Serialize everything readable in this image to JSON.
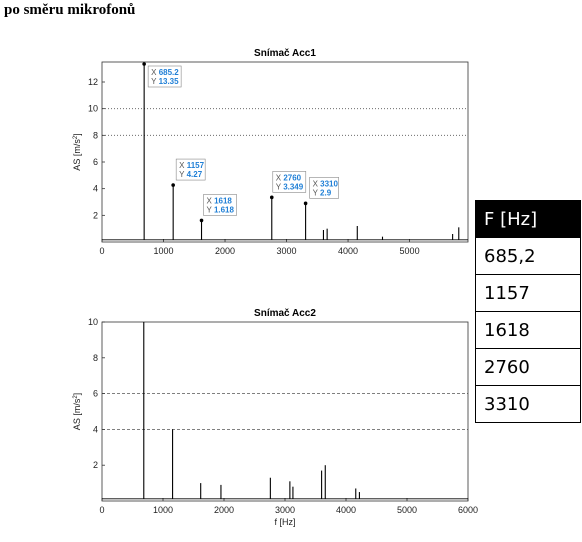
{
  "heading": "po směru mikrofonů",
  "freq_table": {
    "header": "F [Hz]",
    "rows": [
      "685,2",
      "1157",
      "1618",
      "2760",
      "3310"
    ]
  },
  "chart_data": [
    {
      "type": "line",
      "title": "Snímač Acc1",
      "xlabel": "",
      "ylabel": "AS [m/s2]",
      "xlim": [
        0,
        5950
      ],
      "ylim": [
        0,
        13.5
      ],
      "xticks": [
        0,
        1000,
        2000,
        3000,
        4000,
        5000
      ],
      "yticks": [
        2,
        4,
        6,
        8,
        10,
        12
      ],
      "grid": "dotted horizontal at 8 and 10",
      "grid_y": [
        8,
        10
      ],
      "color": "#000000",
      "peaks": [
        {
          "x": 685.2,
          "y": 13.35
        },
        {
          "x": 1157,
          "y": 4.27
        },
        {
          "x": 1618,
          "y": 1.618
        },
        {
          "x": 2760,
          "y": 3.349
        },
        {
          "x": 3310,
          "y": 2.9
        },
        {
          "x": 3600,
          "y": 0.9
        },
        {
          "x": 3660,
          "y": 1.0
        },
        {
          "x": 4150,
          "y": 1.2
        },
        {
          "x": 4560,
          "y": 0.4
        },
        {
          "x": 5700,
          "y": 0.6
        },
        {
          "x": 5800,
          "y": 1.1
        }
      ],
      "datatips": [
        {
          "x_label": "X",
          "x_value": "685.2",
          "y_label": "Y",
          "y_value": "13.35"
        },
        {
          "x_label": "X",
          "x_value": "1157",
          "y_label": "Y",
          "y_value": "4.27"
        },
        {
          "x_label": "X",
          "x_value": "1618",
          "y_label": "Y",
          "y_value": "1.618"
        },
        {
          "x_label": "X",
          "x_value": "2760",
          "y_label": "Y",
          "y_value": "3.349"
        },
        {
          "x_label": "X",
          "x_value": "3310",
          "y_label": "Y",
          "y_value": "2.9"
        }
      ]
    },
    {
      "type": "line",
      "title": "Snímač Acc2",
      "xlabel": "f [Hz]",
      "ylabel": "AS [m/s2]",
      "xlim": [
        0,
        6000
      ],
      "ylim": [
        0,
        10
      ],
      "xticks": [
        0,
        1000,
        2000,
        3000,
        4000,
        5000,
        6000
      ],
      "yticks": [
        2,
        4,
        6,
        8,
        10
      ],
      "grid": "dashed horizontal at 4 and 6",
      "grid_y": [
        4,
        6
      ],
      "color": "#000000",
      "peaks": [
        {
          "x": 685,
          "y": 10.0
        },
        {
          "x": 1157,
          "y": 4.0
        },
        {
          "x": 1618,
          "y": 1.0
        },
        {
          "x": 1950,
          "y": 0.9
        },
        {
          "x": 2760,
          "y": 1.3
        },
        {
          "x": 3080,
          "y": 1.1
        },
        {
          "x": 3130,
          "y": 0.8
        },
        {
          "x": 3600,
          "y": 1.7
        },
        {
          "x": 3660,
          "y": 2.0
        },
        {
          "x": 4160,
          "y": 0.7
        },
        {
          "x": 4220,
          "y": 0.5
        }
      ]
    }
  ]
}
